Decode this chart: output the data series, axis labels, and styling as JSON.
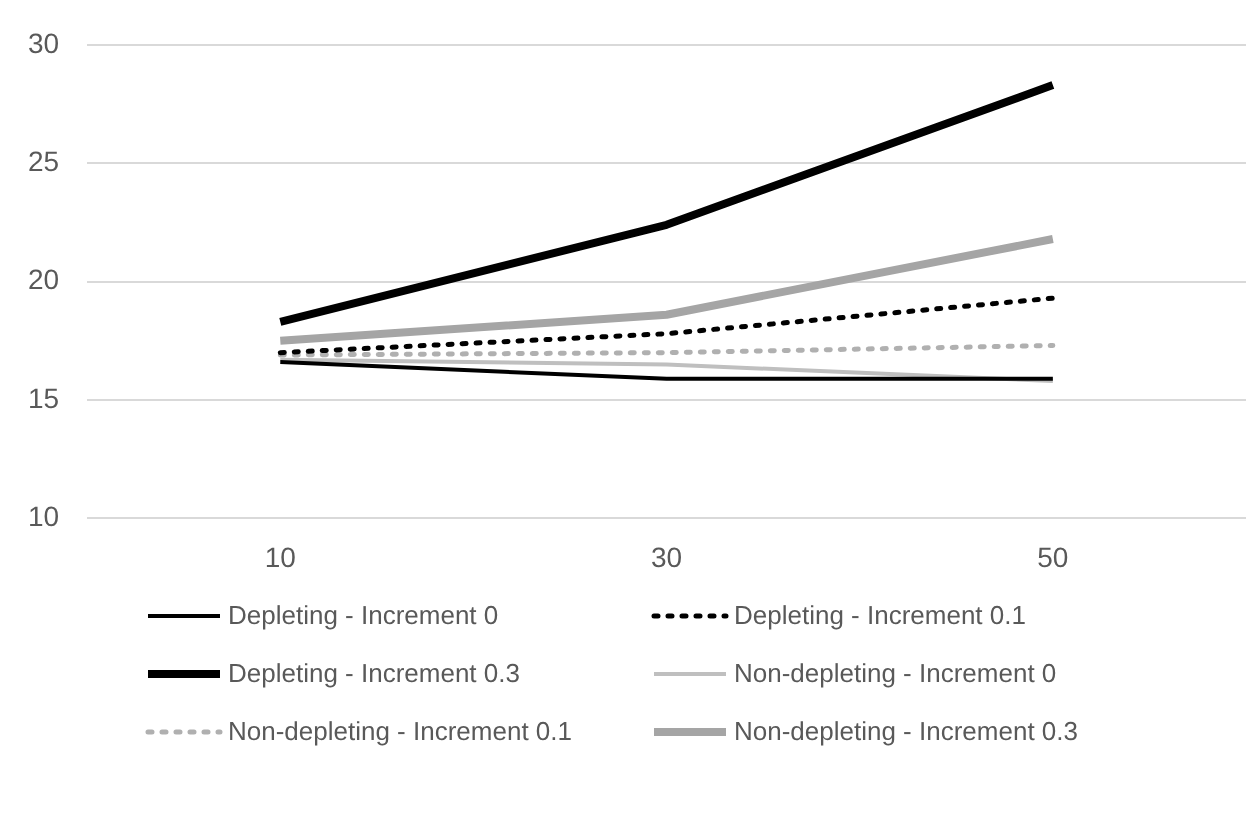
{
  "chart_data": {
    "type": "line",
    "categories": [
      "10",
      "30",
      "50"
    ],
    "series": [
      {
        "name": "Depleting - Increment 0",
        "color": "#000000",
        "line_style": "solid",
        "values": [
          16.6,
          15.9,
          15.9
        ]
      },
      {
        "name": "Depleting - Increment 0.1",
        "color": "#000000",
        "line_style": "dotted",
        "values": [
          17.0,
          17.8,
          19.3
        ]
      },
      {
        "name": "Depleting - Increment 0.3",
        "color": "#000000",
        "line_style": "solid",
        "values": [
          18.3,
          22.4,
          28.3
        ]
      },
      {
        "name": "Non-depleting - Increment 0",
        "color": "#bfbfbf",
        "line_style": "solid",
        "values": [
          16.7,
          16.5,
          15.8
        ]
      },
      {
        "name": "Non-depleting - Increment 0.1",
        "color": "#b0b0b0",
        "line_style": "dotted",
        "values": [
          16.9,
          17.0,
          17.3
        ]
      },
      {
        "name": "Non-depleting - Increment 0.3",
        "color": "#a5a5a5",
        "line_style": "solid",
        "values": [
          17.5,
          18.6,
          21.8
        ]
      }
    ],
    "ylim": [
      10,
      30
    ],
    "yticks": [
      10,
      15,
      20,
      25,
      30
    ],
    "grid": "y",
    "legend": "bottom",
    "marker": "none"
  }
}
